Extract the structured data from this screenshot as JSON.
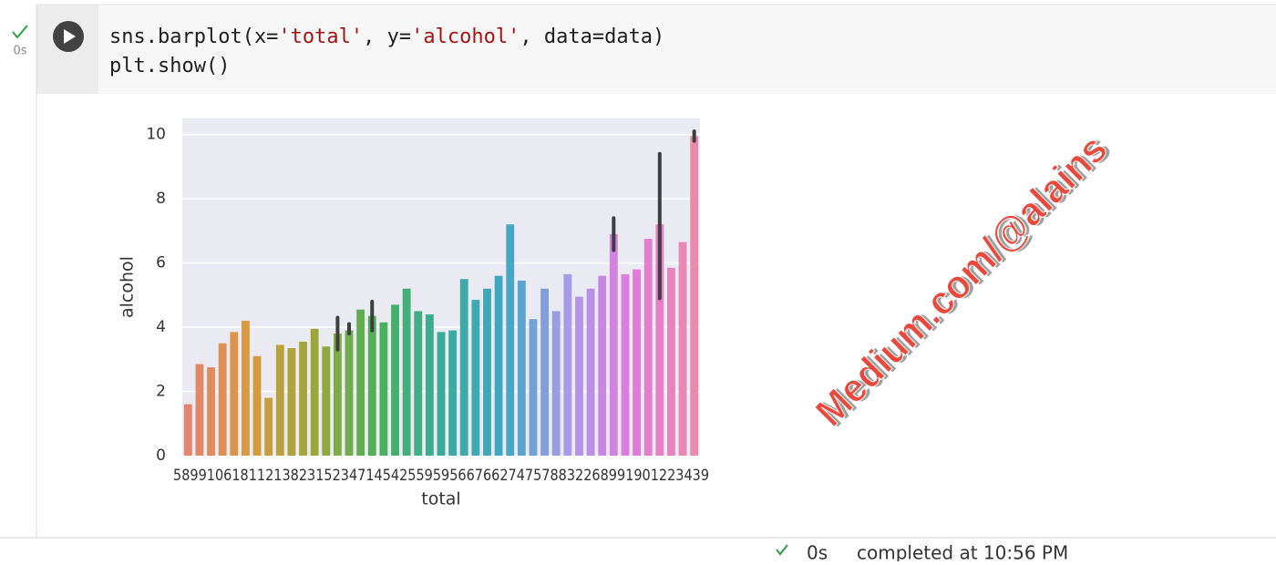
{
  "cell": {
    "status_time": "0s",
    "code": [
      [
        {
          "text": "sns.barplot(x=",
          "color": "#1f1f1f"
        },
        {
          "text": "'total'",
          "color": "#a31515"
        },
        {
          "text": ", y=",
          "color": "#1f1f1f"
        },
        {
          "text": "'alcohol'",
          "color": "#a31515"
        },
        {
          "text": ", data=data)",
          "color": "#1f1f1f"
        }
      ],
      [
        {
          "text": "plt.show()",
          "color": "#1f1f1f"
        }
      ]
    ]
  },
  "chart_data": {
    "type": "bar",
    "ylabel": "alcohol",
    "xlabel": "total",
    "x_tick_text": "5899106181121382315234714542559595667662747578832268991901223439",
    "categories": [
      null,
      null,
      null,
      null,
      null,
      null,
      null,
      null,
      null,
      null,
      null,
      null,
      null,
      null,
      null,
      null,
      null,
      null,
      null,
      null,
      null,
      null,
      null,
      null,
      null,
      null,
      null,
      null,
      null,
      null,
      null,
      null,
      null,
      null,
      null,
      null,
      null,
      null,
      null,
      null,
      null,
      null,
      null,
      null,
      null
    ],
    "values": [
      1.6,
      2.85,
      2.75,
      3.5,
      3.85,
      4.2,
      3.1,
      1.8,
      3.45,
      3.35,
      3.55,
      3.95,
      3.4,
      3.8,
      3.9,
      4.55,
      4.35,
      4.15,
      4.7,
      5.2,
      4.5,
      4.4,
      3.85,
      3.9,
      5.5,
      4.85,
      5.2,
      5.6,
      7.2,
      5.45,
      4.25,
      5.2,
      4.5,
      5.65,
      4.95,
      5.2,
      5.6,
      6.9,
      5.65,
      5.8,
      6.75,
      7.2,
      5.85,
      6.65,
      9.95
    ],
    "error_low": [
      null,
      null,
      null,
      null,
      null,
      null,
      null,
      null,
      null,
      null,
      null,
      null,
      null,
      3.3,
      3.8,
      null,
      3.9,
      null,
      null,
      null,
      null,
      null,
      null,
      null,
      null,
      null,
      null,
      null,
      null,
      null,
      null,
      null,
      null,
      null,
      null,
      null,
      null,
      6.4,
      null,
      null,
      null,
      4.9,
      null,
      null,
      9.8
    ],
    "error_high": [
      null,
      null,
      null,
      null,
      null,
      null,
      null,
      null,
      null,
      null,
      null,
      null,
      null,
      4.3,
      4.1,
      null,
      4.8,
      null,
      null,
      null,
      null,
      null,
      null,
      null,
      null,
      null,
      null,
      null,
      null,
      null,
      null,
      null,
      null,
      null,
      null,
      null,
      null,
      7.4,
      null,
      null,
      null,
      9.4,
      null,
      null,
      10.1
    ],
    "palette": [
      "#e6836f",
      "#d89a3e",
      "#9aa83a",
      "#4bb05a",
      "#3aab99",
      "#41a7c4",
      "#a99be8",
      "#e179dd",
      "#ea89ab"
    ],
    "ylim": [
      0,
      10.5
    ],
    "yticks": [
      0,
      2,
      4,
      6,
      8,
      10
    ],
    "grid": true,
    "background": "#eaeaf2"
  },
  "watermark": "Medium.com/@alains",
  "footer": {
    "status": "0s",
    "text": "completed at 10:56 PM"
  }
}
